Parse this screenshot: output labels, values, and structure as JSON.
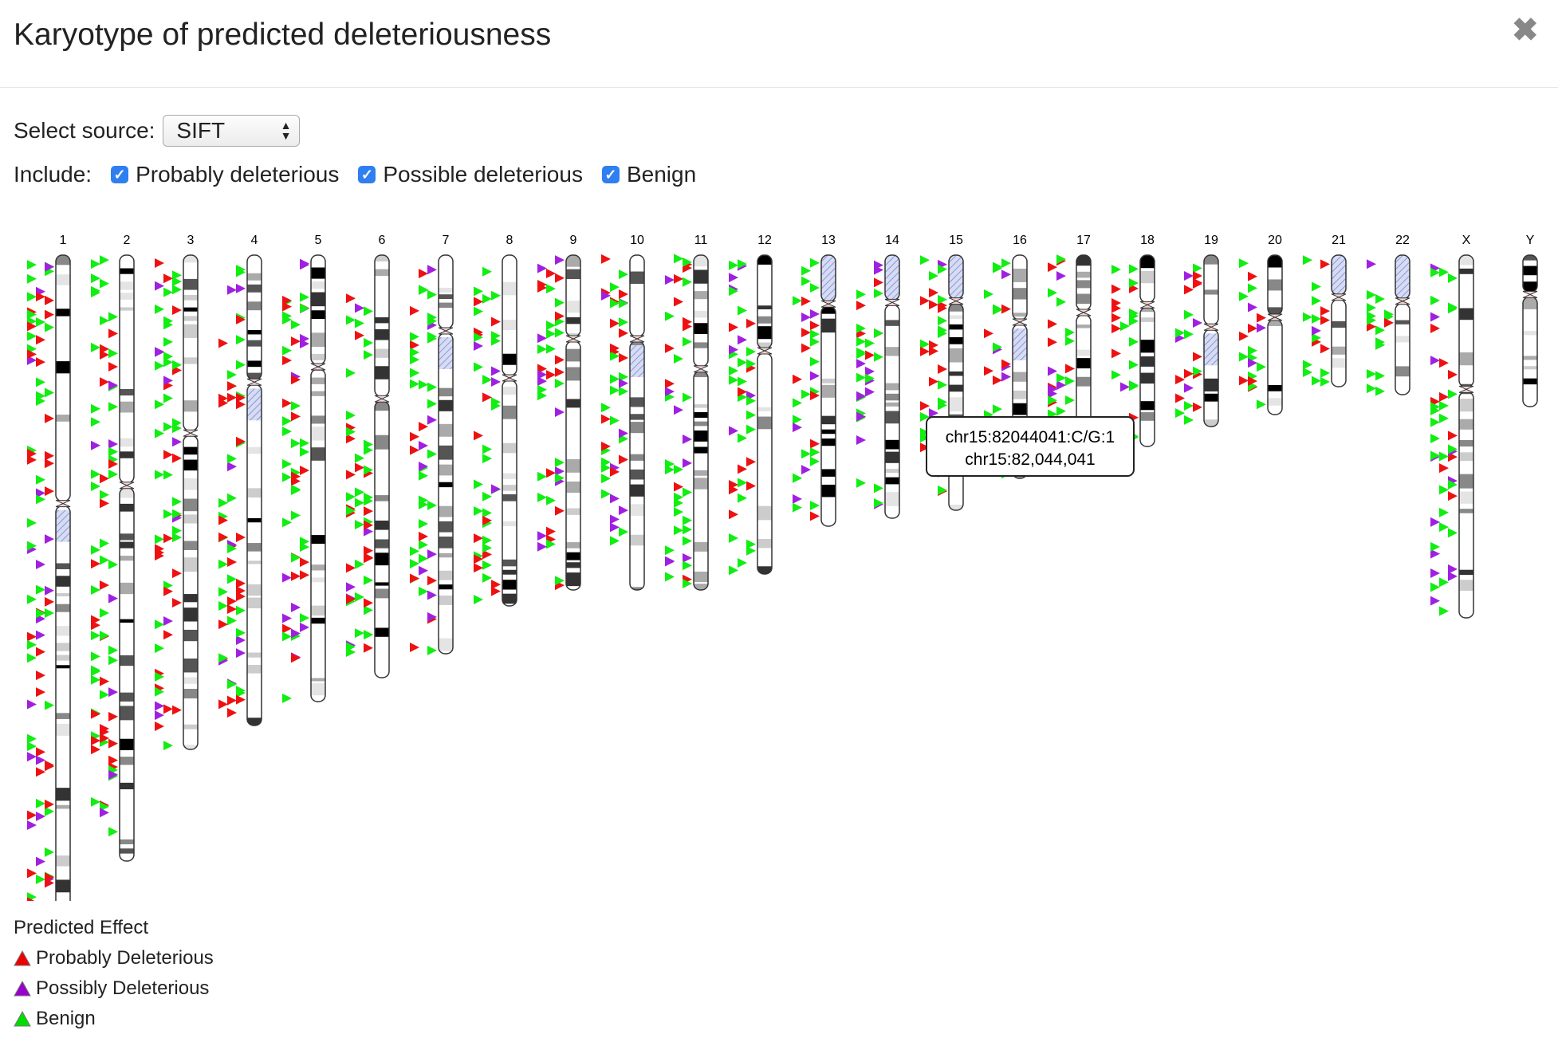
{
  "dialog": {
    "title": "Karyotype of predicted deleteriousness"
  },
  "source": {
    "label": "Select source:",
    "selected": "SIFT"
  },
  "include": {
    "label": "Include:",
    "options": [
      {
        "label": "Probably deleterious",
        "checked": true
      },
      {
        "label": "Possible deleterious",
        "checked": true
      },
      {
        "label": "Benign",
        "checked": true
      }
    ]
  },
  "chromosomes": [
    "1",
    "2",
    "3",
    "4",
    "5",
    "6",
    "7",
    "8",
    "9",
    "10",
    "11",
    "12",
    "13",
    "14",
    "15",
    "16",
    "17",
    "18",
    "19",
    "20",
    "21",
    "22",
    "X",
    "Y"
  ],
  "tooltip": {
    "line1": "chr15:82044041:C/G:1",
    "line2": "chr15:82,044,041"
  },
  "legend": {
    "title": "Predicted Effect",
    "items": [
      {
        "label": "Probably Deleterious",
        "color": "#ee0000"
      },
      {
        "label": "Possibly Deleterious",
        "color": "#9900cc"
      },
      {
        "label": "Benign",
        "color": "#00dd00"
      }
    ]
  },
  "colors": {
    "probably": "#ee1111",
    "possibly": "#a020e0",
    "benign": "#11ee11"
  }
}
